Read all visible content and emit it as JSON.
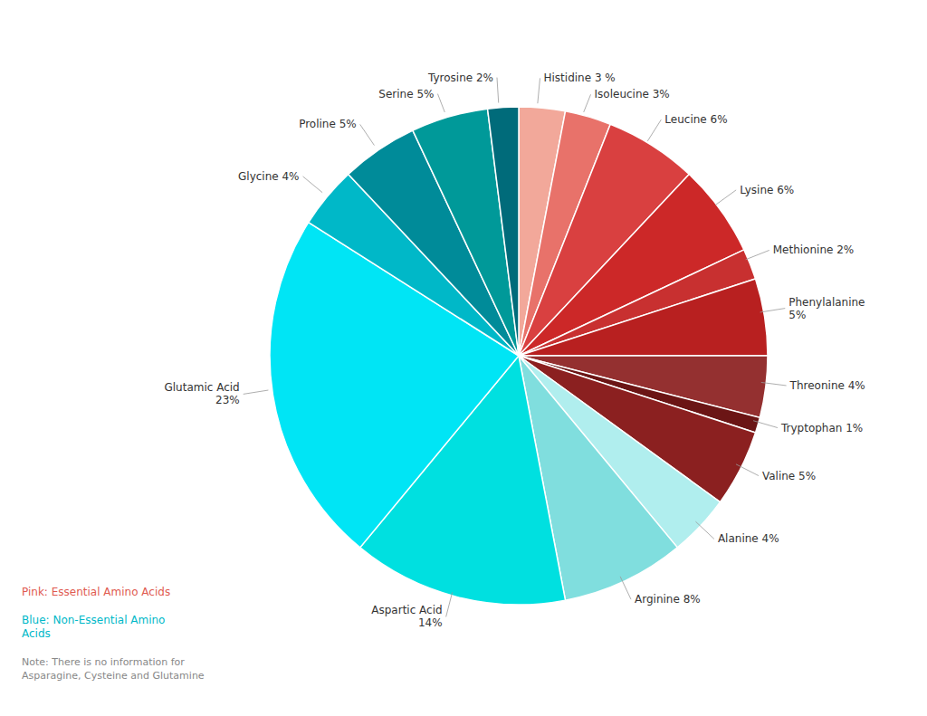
{
  "chart_data": {
    "type": "pie",
    "labels": [
      "Histidine 3 %",
      "Isoleucine 3%",
      "Leucine 6%",
      "Lysine 6%",
      "Methionine 2%",
      "Phenylalanine\n5%",
      "Threonine 4%",
      "Tryptophan 1%",
      "Valine 5%",
      "Alanine 4%",
      "Arginine 8%",
      "Aspartic Acid\n14%",
      "Glutamic Acid\n23%",
      "Glycine 4%",
      "Proline 5%",
      "Serine 5%",
      "Tyrosine 2%"
    ],
    "values": [
      3,
      3,
      6,
      6,
      2,
      5,
      4,
      1,
      5,
      4,
      8,
      14,
      23,
      4,
      5,
      5,
      2
    ],
    "colors": [
      "#F2A89A",
      "#E8726A",
      "#D94040",
      "#CC2828",
      "#C83030",
      "#B82020",
      "#943030",
      "#6B1515",
      "#8B2020",
      "#B0EEEE",
      "#80DEDE",
      "#00E0E0",
      "#00E5F5",
      "#00B8C8",
      "#008B99",
      "#009999",
      "#006B7A"
    ],
    "annotations": [
      {
        "text": "Pink: Essential Amino Acids",
        "color": "#E05A50"
      },
      {
        "text": "Blue: Non-Essential Amino\nAcids",
        "color": "#00B8C8"
      },
      {
        "text": "Note: There is no information for\nAsparagine, Cysteine and Glutamine",
        "color": "#888888"
      }
    ]
  }
}
